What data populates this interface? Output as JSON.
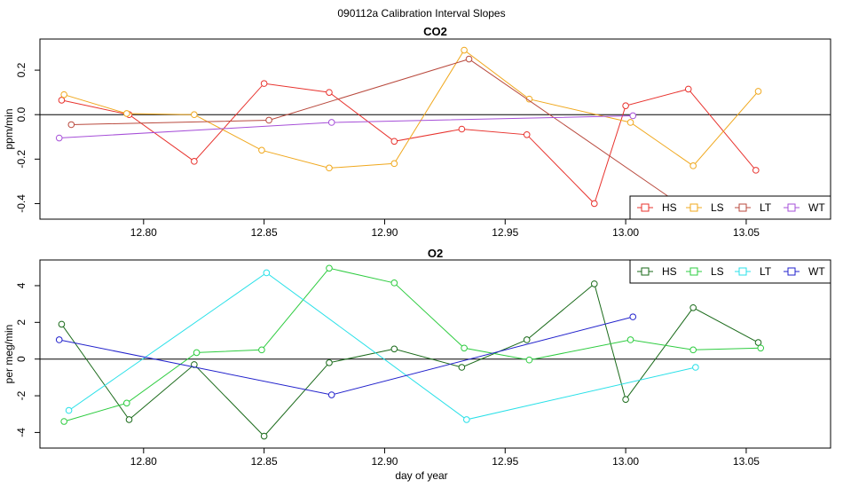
{
  "page_title": "090112a   Calibration Interval Slopes",
  "xlabel": "day of year",
  "chart_data": [
    {
      "type": "line",
      "title": "CO2",
      "ylabel": "ppm/min",
      "xlim": [
        12.757,
        13.085
      ],
      "ylim": [
        -0.47,
        0.34
      ],
      "x_ticks": [
        12.8,
        12.85,
        12.9,
        12.95,
        13.0,
        13.05
      ],
      "x_tick_labels": [
        "12.80",
        "12.85",
        "12.90",
        "12.95",
        "13.00",
        "13.05"
      ],
      "y_ticks": [
        -0.4,
        -0.2,
        0.0,
        0.2
      ],
      "y_tick_labels": [
        "-0.4",
        "-0.2",
        "0.0",
        "0.2"
      ],
      "hline": 0,
      "legend_position": "bottom-right",
      "series": [
        {
          "name": "HS",
          "color": "#e8332e",
          "x": [
            12.766,
            12.794,
            12.821,
            12.85,
            12.877,
            12.904,
            12.932,
            12.959,
            12.987,
            13.0,
            13.026,
            13.054
          ],
          "y": [
            0.065,
            0.0,
            -0.21,
            0.14,
            0.1,
            -0.12,
            -0.065,
            -0.09,
            -0.4,
            0.04,
            0.115,
            -0.25
          ]
        },
        {
          "name": "LS",
          "color": "#f0a81e",
          "x": [
            12.767,
            12.793,
            12.821,
            12.849,
            12.877,
            12.904,
            12.933,
            12.96,
            13.002,
            13.028,
            13.055
          ],
          "y": [
            0.09,
            0.005,
            0.0,
            -0.16,
            -0.24,
            -0.22,
            0.29,
            0.07,
            -0.035,
            -0.23,
            0.105
          ]
        },
        {
          "name": "LT",
          "color": "#b94a3e",
          "x": [
            12.77,
            12.852,
            12.935,
            13.022
          ],
          "y": [
            -0.045,
            -0.025,
            0.25,
            -0.4
          ]
        },
        {
          "name": "WT",
          "color": "#a64fd8",
          "x": [
            12.765,
            12.878,
            13.003
          ],
          "y": [
            -0.105,
            -0.035,
            -0.005
          ]
        }
      ]
    },
    {
      "type": "line",
      "title": "O2",
      "ylabel": "per meg/min",
      "xlim": [
        12.757,
        13.085
      ],
      "ylim": [
        -4.85,
        5.4
      ],
      "x_ticks": [
        12.8,
        12.85,
        12.9,
        12.95,
        13.0,
        13.05
      ],
      "x_tick_labels": [
        "12.80",
        "12.85",
        "12.90",
        "12.95",
        "13.00",
        "13.05"
      ],
      "y_ticks": [
        -4,
        -2,
        0,
        2,
        4
      ],
      "y_tick_labels": [
        "-4",
        "-2",
        "0",
        "2",
        "4"
      ],
      "hline": 0,
      "legend_position": "top-right",
      "series": [
        {
          "name": "HS",
          "color": "#1a6a1a",
          "x": [
            12.766,
            12.794,
            12.821,
            12.85,
            12.877,
            12.904,
            12.932,
            12.959,
            12.987,
            13.0,
            13.028,
            13.055
          ],
          "y": [
            1.9,
            -3.3,
            -0.3,
            -4.2,
            -0.2,
            0.55,
            -0.45,
            1.05,
            4.1,
            -2.2,
            2.8,
            0.9
          ]
        },
        {
          "name": "LS",
          "color": "#2ecc40",
          "x": [
            12.767,
            12.793,
            12.822,
            12.849,
            12.877,
            12.904,
            12.933,
            12.96,
            13.002,
            13.028,
            13.056
          ],
          "y": [
            -3.4,
            -2.4,
            0.35,
            0.5,
            4.95,
            4.15,
            0.6,
            -0.05,
            1.05,
            0.5,
            0.6
          ]
        },
        {
          "name": "LT",
          "color": "#28e0e8",
          "x": [
            12.769,
            12.851,
            12.934,
            13.029
          ],
          "y": [
            -2.8,
            4.7,
            -3.3,
            -0.45
          ]
        },
        {
          "name": "WT",
          "color": "#2222cc",
          "x": [
            12.765,
            12.878,
            13.003
          ],
          "y": [
            1.05,
            -1.95,
            2.3
          ]
        }
      ]
    }
  ]
}
